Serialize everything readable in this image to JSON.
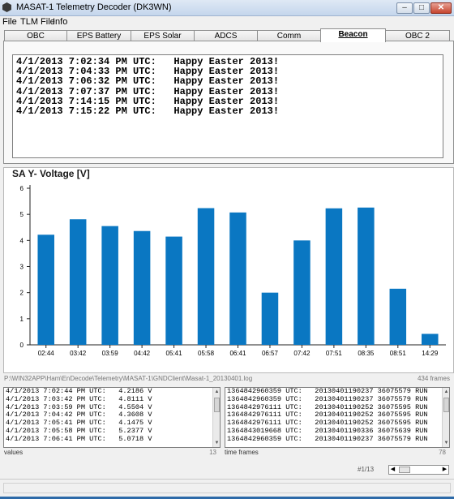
{
  "window": {
    "title": "MASAT-1 Telemetry Decoder (DK3WN)",
    "minimize": "–",
    "maximize": "□",
    "close": "✕"
  },
  "menu": [
    "File",
    "TLM File",
    "Info"
  ],
  "tabs": [
    "OBC",
    "EPS Battery",
    "EPS  Solar",
    "ADCS",
    "Comm",
    "Beacon",
    "OBC 2"
  ],
  "active_tab": "Beacon",
  "beacon_messages": [
    "4/1/2013 7:02:34 PM UTC:   Happy Easter 2013!",
    "4/1/2013 7:04:33 PM UTC:   Happy Easter 2013!",
    "4/1/2013 7:06:32 PM UTC:   Happy Easter 2013!",
    "4/1/2013 7:07:37 PM UTC:   Happy Easter 2013!",
    "4/1/2013 7:14:15 PM UTC:   Happy Easter 2013!",
    "4/1/2013 7:15:22 PM UTC:   Happy Easter 2013!"
  ],
  "chart_data": {
    "type": "bar",
    "title": "SA Y- Voltage [V]",
    "categories": [
      "02:44",
      "03:42",
      "03:59",
      "04:42",
      "05:41",
      "05:58",
      "06:41",
      "06:57",
      "07:42",
      "07:51",
      "08:35",
      "08:51",
      "14:29"
    ],
    "values": [
      4.2186,
      4.8111,
      4.5504,
      4.3608,
      4.1475,
      5.2377,
      5.0718,
      2.0,
      4.0,
      5.23,
      5.26,
      2.15,
      0.42
    ],
    "ylim": [
      0,
      6
    ],
    "yticks": [
      "0",
      "1",
      "2",
      "3",
      "4",
      "5",
      "6"
    ],
    "grid": false,
    "bar_color": "#0a77c2"
  },
  "file_path": "P:\\WIN32APP\\Ham\\EnDecode\\Telemetry\\MASAT-1\\GNDClient\\Masat-1_20130401.log",
  "frames_total": "434 frames",
  "values_list": [
    "4/1/2013 7:02:44 PM UTC:   4.2186 V",
    "4/1/2013 7:03:42 PM UTC:   4.8111 V",
    "4/1/2013 7:03:59 PM UTC:   4.5504 V",
    "4/1/2013 7:04:42 PM UTC:   4.3608 V",
    "4/1/2013 7:05:41 PM UTC:   4.1475 V",
    "4/1/2013 7:05:58 PM UTC:   5.2377 V",
    "4/1/2013 7:06:41 PM UTC:   5.0718 V"
  ],
  "values_label": "values",
  "values_count": "13",
  "frames_list": [
    "1364842960359 UTC:   20130401190237 36075579 RUN",
    "1364842960359 UTC:   20130401190237 36075579 RUN",
    "1364842976111 UTC:   20130401190252 36075595 RUN",
    "1364842976111 UTC:   20130401190252 36075595 RUN",
    "1364842976111 UTC:   20130401190252 36075595 RUN",
    "1364843019668 UTC:   20130401190336 36075639 RUN",
    "1364842960359 UTC:   20130401190237 36075579 RUN"
  ],
  "frames_label": "time frames",
  "frames_count": "78",
  "pager": "#1/13"
}
